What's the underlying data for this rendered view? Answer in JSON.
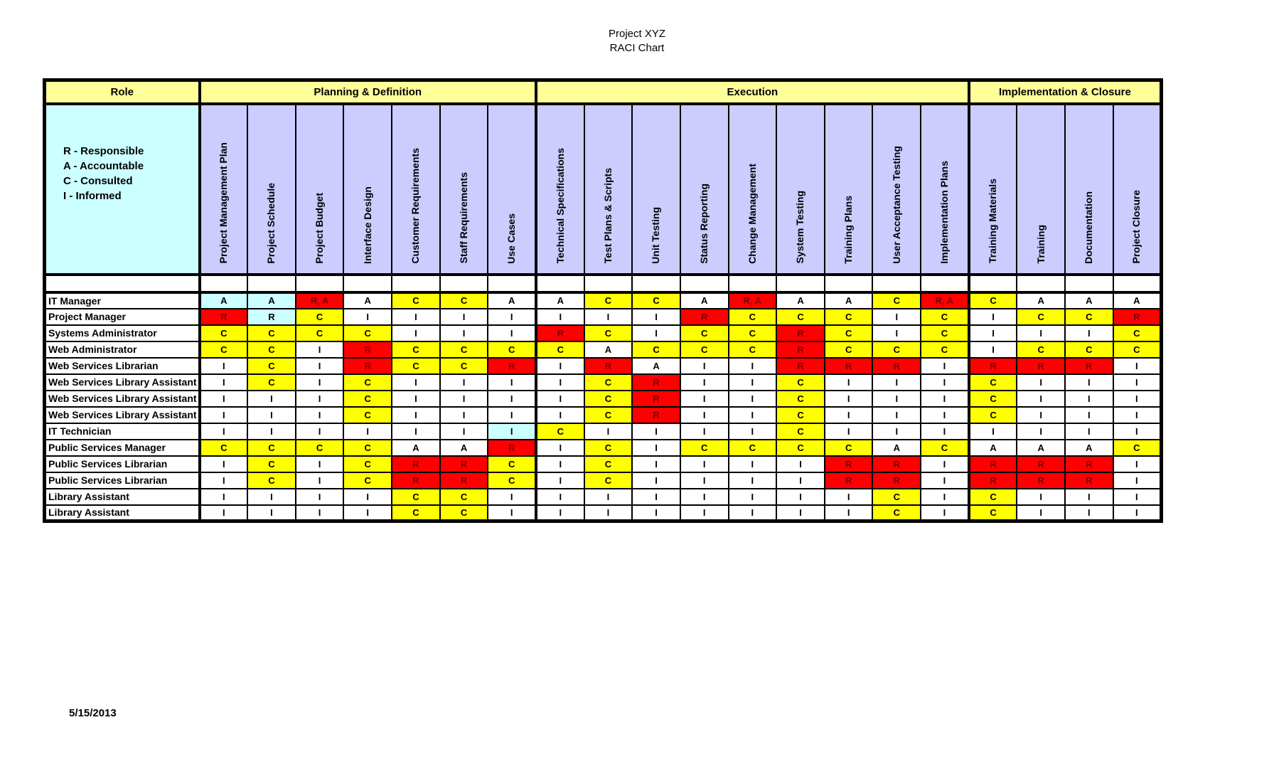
{
  "page_title": {
    "line1": "Project XYZ",
    "line2": "RACI Chart"
  },
  "header": {
    "role_label": "Role"
  },
  "groups": [
    {
      "label": "Planning & Definition",
      "span": 7
    },
    {
      "label": "Execution",
      "span": 9
    },
    {
      "label": "Implementation & Closure",
      "span": 4
    }
  ],
  "columns": [
    "Project Management Plan",
    "Project Schedule",
    "Project Budget",
    "Interface Design",
    "Customer Requirements",
    "Staff Requirements",
    "Use Cases",
    "Technical Specifications",
    "Test Plans & Scripts",
    "Unit Testing",
    "Status Reporting",
    "Change Management",
    "System Testing",
    "Training Plans",
    "User Acceptance Testing",
    "Implementation Plans",
    "Training Materials",
    "Training",
    "Documentation",
    "Project Closure"
  ],
  "legend": {
    "lines": [
      "R - Responsible",
      "A - Accountable",
      "C - Consulted",
      "I - Informed"
    ]
  },
  "rows": [
    {
      "role": "IT Manager",
      "cells": [
        [
          "A",
          "c"
        ],
        [
          "A",
          "c"
        ],
        [
          "R, A",
          "r"
        ],
        [
          "A",
          "w"
        ],
        [
          "C",
          "y"
        ],
        [
          "C",
          "y"
        ],
        [
          "A",
          "w"
        ],
        [
          "A",
          "w"
        ],
        [
          "C",
          "y"
        ],
        [
          "C",
          "y"
        ],
        [
          "A",
          "w"
        ],
        [
          "R, A",
          "r"
        ],
        [
          "A",
          "w"
        ],
        [
          "A",
          "w"
        ],
        [
          "C",
          "y"
        ],
        [
          "R, A",
          "r"
        ],
        [
          "C",
          "y"
        ],
        [
          "A",
          "w"
        ],
        [
          "A",
          "w"
        ],
        [
          "A",
          "w"
        ]
      ]
    },
    {
      "role": "Project Manager",
      "cells": [
        [
          "R",
          "r"
        ],
        [
          "R",
          "c"
        ],
        [
          "C",
          "y"
        ],
        [
          "I",
          "w"
        ],
        [
          "I",
          "w"
        ],
        [
          "I",
          "w"
        ],
        [
          "I",
          "w"
        ],
        [
          "I",
          "w"
        ],
        [
          "I",
          "w"
        ],
        [
          "I",
          "w"
        ],
        [
          "R",
          "r"
        ],
        [
          "C",
          "y"
        ],
        [
          "C",
          "y"
        ],
        [
          "C",
          "y"
        ],
        [
          "I",
          "w"
        ],
        [
          "C",
          "y"
        ],
        [
          "I",
          "w"
        ],
        [
          "C",
          "y"
        ],
        [
          "C",
          "y"
        ],
        [
          "R",
          "r"
        ]
      ]
    },
    {
      "role": "Systems Administrator",
      "cells": [
        [
          "C",
          "y"
        ],
        [
          "C",
          "y"
        ],
        [
          "C",
          "y"
        ],
        [
          "C",
          "y"
        ],
        [
          "I",
          "w"
        ],
        [
          "I",
          "w"
        ],
        [
          "I",
          "w"
        ],
        [
          "R",
          "r"
        ],
        [
          "C",
          "y"
        ],
        [
          "I",
          "w"
        ],
        [
          "C",
          "y"
        ],
        [
          "C",
          "y"
        ],
        [
          "R",
          "r"
        ],
        [
          "C",
          "y"
        ],
        [
          "I",
          "w"
        ],
        [
          "C",
          "y"
        ],
        [
          "I",
          "w"
        ],
        [
          "I",
          "w"
        ],
        [
          "I",
          "w"
        ],
        [
          "C",
          "y"
        ]
      ]
    },
    {
      "role": "Web Administrator",
      "cells": [
        [
          "C",
          "y"
        ],
        [
          "C",
          "y"
        ],
        [
          "I",
          "w"
        ],
        [
          "R",
          "r"
        ],
        [
          "C",
          "y"
        ],
        [
          "C",
          "y"
        ],
        [
          "C",
          "y"
        ],
        [
          "C",
          "y"
        ],
        [
          "A",
          "w"
        ],
        [
          "C",
          "y"
        ],
        [
          "C",
          "y"
        ],
        [
          "C",
          "y"
        ],
        [
          "R",
          "r"
        ],
        [
          "C",
          "y"
        ],
        [
          "C",
          "y"
        ],
        [
          "C",
          "y"
        ],
        [
          "I",
          "w"
        ],
        [
          "C",
          "y"
        ],
        [
          "C",
          "y"
        ],
        [
          "C",
          "y"
        ]
      ]
    },
    {
      "role": "Web Services Librarian",
      "cells": [
        [
          "I",
          "w"
        ],
        [
          "C",
          "y"
        ],
        [
          "I",
          "w"
        ],
        [
          "R",
          "r"
        ],
        [
          "C",
          "y"
        ],
        [
          "C",
          "y"
        ],
        [
          "R",
          "r"
        ],
        [
          "I",
          "w"
        ],
        [
          "R",
          "r"
        ],
        [
          "A",
          "w"
        ],
        [
          "I",
          "w"
        ],
        [
          "I",
          "w"
        ],
        [
          "R",
          "r"
        ],
        [
          "R",
          "r"
        ],
        [
          "R",
          "r"
        ],
        [
          "I",
          "w"
        ],
        [
          "R",
          "r"
        ],
        [
          "R",
          "r"
        ],
        [
          "R",
          "r"
        ],
        [
          "I",
          "w"
        ]
      ]
    },
    {
      "role": "Web Services Library Assistant",
      "cells": [
        [
          "I",
          "w"
        ],
        [
          "C",
          "y"
        ],
        [
          "I",
          "w"
        ],
        [
          "C",
          "y"
        ],
        [
          "I",
          "w"
        ],
        [
          "I",
          "w"
        ],
        [
          "I",
          "w"
        ],
        [
          "I",
          "w"
        ],
        [
          "C",
          "y"
        ],
        [
          "R",
          "r"
        ],
        [
          "I",
          "w"
        ],
        [
          "I",
          "w"
        ],
        [
          "C",
          "y"
        ],
        [
          "I",
          "w"
        ],
        [
          "I",
          "w"
        ],
        [
          "I",
          "w"
        ],
        [
          "C",
          "y"
        ],
        [
          "I",
          "w"
        ],
        [
          "I",
          "w"
        ],
        [
          "I",
          "w"
        ]
      ]
    },
    {
      "role": "Web Services Library Assistant",
      "cells": [
        [
          "I",
          "w"
        ],
        [
          "I",
          "w"
        ],
        [
          "I",
          "w"
        ],
        [
          "C",
          "y"
        ],
        [
          "I",
          "w"
        ],
        [
          "I",
          "w"
        ],
        [
          "I",
          "w"
        ],
        [
          "I",
          "w"
        ],
        [
          "C",
          "y"
        ],
        [
          "R",
          "r"
        ],
        [
          "I",
          "w"
        ],
        [
          "I",
          "w"
        ],
        [
          "C",
          "y"
        ],
        [
          "I",
          "w"
        ],
        [
          "I",
          "w"
        ],
        [
          "I",
          "w"
        ],
        [
          "C",
          "y"
        ],
        [
          "I",
          "w"
        ],
        [
          "I",
          "w"
        ],
        [
          "I",
          "w"
        ]
      ]
    },
    {
      "role": "Web Services Library Assistant",
      "cells": [
        [
          "I",
          "w"
        ],
        [
          "I",
          "w"
        ],
        [
          "I",
          "w"
        ],
        [
          "C",
          "y"
        ],
        [
          "I",
          "w"
        ],
        [
          "I",
          "w"
        ],
        [
          "I",
          "w"
        ],
        [
          "I",
          "w"
        ],
        [
          "C",
          "y"
        ],
        [
          "R",
          "r"
        ],
        [
          "I",
          "w"
        ],
        [
          "I",
          "w"
        ],
        [
          "C",
          "y"
        ],
        [
          "I",
          "w"
        ],
        [
          "I",
          "w"
        ],
        [
          "I",
          "w"
        ],
        [
          "C",
          "y"
        ],
        [
          "I",
          "w"
        ],
        [
          "I",
          "w"
        ],
        [
          "I",
          "w"
        ]
      ]
    },
    {
      "role": "IT Technician",
      "cells": [
        [
          "I",
          "w"
        ],
        [
          "I",
          "w"
        ],
        [
          "I",
          "w"
        ],
        [
          "I",
          "w"
        ],
        [
          "I",
          "w"
        ],
        [
          "I",
          "w"
        ],
        [
          "I",
          "c"
        ],
        [
          "C",
          "y"
        ],
        [
          "I",
          "w"
        ],
        [
          "I",
          "w"
        ],
        [
          "I",
          "w"
        ],
        [
          "I",
          "w"
        ],
        [
          "C",
          "y"
        ],
        [
          "I",
          "w"
        ],
        [
          "I",
          "w"
        ],
        [
          "I",
          "w"
        ],
        [
          "I",
          "w"
        ],
        [
          "I",
          "w"
        ],
        [
          "I",
          "w"
        ],
        [
          "I",
          "w"
        ]
      ]
    },
    {
      "role": "Public Services Manager",
      "cells": [
        [
          "C",
          "y"
        ],
        [
          "C",
          "y"
        ],
        [
          "C",
          "y"
        ],
        [
          "C",
          "y"
        ],
        [
          "A",
          "w"
        ],
        [
          "A",
          "w"
        ],
        [
          "R",
          "r"
        ],
        [
          "I",
          "w"
        ],
        [
          "C",
          "y"
        ],
        [
          "I",
          "w"
        ],
        [
          "C",
          "y"
        ],
        [
          "C",
          "y"
        ],
        [
          "C",
          "y"
        ],
        [
          "C",
          "y"
        ],
        [
          "A",
          "w"
        ],
        [
          "C",
          "y"
        ],
        [
          "A",
          "w"
        ],
        [
          "A",
          "w"
        ],
        [
          "A",
          "w"
        ],
        [
          "C",
          "y"
        ]
      ]
    },
    {
      "role": "Public Services Librarian",
      "cells": [
        [
          "I",
          "w"
        ],
        [
          "C",
          "y"
        ],
        [
          "I",
          "w"
        ],
        [
          "C",
          "y"
        ],
        [
          "R",
          "r"
        ],
        [
          "R",
          "r"
        ],
        [
          "C",
          "y"
        ],
        [
          "I",
          "w"
        ],
        [
          "C",
          "y"
        ],
        [
          "I",
          "w"
        ],
        [
          "I",
          "w"
        ],
        [
          "I",
          "w"
        ],
        [
          "I",
          "w"
        ],
        [
          "R",
          "r"
        ],
        [
          "R",
          "r"
        ],
        [
          "I",
          "w"
        ],
        [
          "R",
          "r"
        ],
        [
          "R",
          "r"
        ],
        [
          "R",
          "r"
        ],
        [
          "I",
          "w"
        ]
      ]
    },
    {
      "role": "Public Services Librarian",
      "cells": [
        [
          "I",
          "w"
        ],
        [
          "C",
          "y"
        ],
        [
          "I",
          "w"
        ],
        [
          "C",
          "y"
        ],
        [
          "R",
          "r"
        ],
        [
          "R",
          "r"
        ],
        [
          "C",
          "y"
        ],
        [
          "I",
          "w"
        ],
        [
          "C",
          "y"
        ],
        [
          "I",
          "w"
        ],
        [
          "I",
          "w"
        ],
        [
          "I",
          "w"
        ],
        [
          "I",
          "w"
        ],
        [
          "R",
          "r"
        ],
        [
          "R",
          "r"
        ],
        [
          "I",
          "w"
        ],
        [
          "R",
          "r"
        ],
        [
          "R",
          "r"
        ],
        [
          "R",
          "r"
        ],
        [
          "I",
          "w"
        ]
      ]
    },
    {
      "role": "Library Assistant",
      "cells": [
        [
          "I",
          "w"
        ],
        [
          "I",
          "w"
        ],
        [
          "I",
          "w"
        ],
        [
          "I",
          "w"
        ],
        [
          "C",
          "y"
        ],
        [
          "C",
          "y"
        ],
        [
          "I",
          "w"
        ],
        [
          "I",
          "w"
        ],
        [
          "I",
          "w"
        ],
        [
          "I",
          "w"
        ],
        [
          "I",
          "w"
        ],
        [
          "I",
          "w"
        ],
        [
          "I",
          "w"
        ],
        [
          "I",
          "w"
        ],
        [
          "C",
          "y"
        ],
        [
          "I",
          "w"
        ],
        [
          "C",
          "y"
        ],
        [
          "I",
          "w"
        ],
        [
          "I",
          "w"
        ],
        [
          "I",
          "w"
        ]
      ]
    },
    {
      "role": "Library Assistant",
      "cells": [
        [
          "I",
          "w"
        ],
        [
          "I",
          "w"
        ],
        [
          "I",
          "w"
        ],
        [
          "I",
          "w"
        ],
        [
          "C",
          "y"
        ],
        [
          "C",
          "y"
        ],
        [
          "I",
          "w"
        ],
        [
          "I",
          "w"
        ],
        [
          "I",
          "w"
        ],
        [
          "I",
          "w"
        ],
        [
          "I",
          "w"
        ],
        [
          "I",
          "w"
        ],
        [
          "I",
          "w"
        ],
        [
          "I",
          "w"
        ],
        [
          "C",
          "y"
        ],
        [
          "I",
          "w"
        ],
        [
          "C",
          "y"
        ],
        [
          "I",
          "w"
        ],
        [
          "I",
          "w"
        ],
        [
          "I",
          "w"
        ]
      ]
    }
  ],
  "footer": {
    "date": "5/15/2013"
  },
  "colors": {
    "group_header_bg": "#FFFF99",
    "column_header_bg": "#CCCCFF",
    "legend_bg": "#CCFFFF",
    "cell_bg": {
      "w": "#FFFFFF",
      "y": "#FFFF00",
      "r": "#FF0000",
      "c": "#CCFFFF"
    },
    "red_cell_text": "#7F0000",
    "border": "#000000"
  }
}
